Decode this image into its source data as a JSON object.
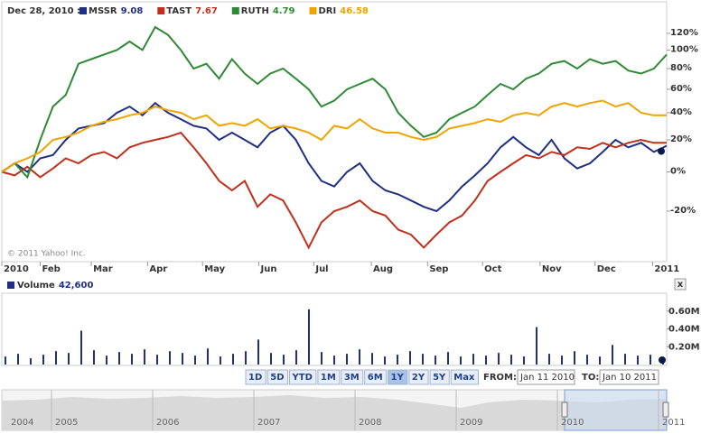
{
  "chart_data": {
    "type": "line",
    "date_label": "Dec 28, 2010 :",
    "credit": "© 2011 Yahoo! Inc.",
    "y_scale": "log",
    "ylim": [
      -40,
      140
    ],
    "yticks": [
      {
        "value": -20,
        "label": "-20%"
      },
      {
        "value": 0,
        "label": "0%"
      },
      {
        "value": 20,
        "label": "20%"
      },
      {
        "value": 40,
        "label": "40%"
      },
      {
        "value": 60,
        "label": "60%"
      },
      {
        "value": 80,
        "label": "80%"
      },
      {
        "value": 100,
        "label": "100%"
      },
      {
        "value": 120,
        "label": "120%"
      }
    ],
    "xlim": [
      0,
      52
    ],
    "xticks": [
      {
        "value": 0,
        "label": "2010"
      },
      {
        "value": 3,
        "label": "Feb"
      },
      {
        "value": 7,
        "label": "Mar"
      },
      {
        "value": 11.4,
        "label": "Apr"
      },
      {
        "value": 15.7,
        "label": "May"
      },
      {
        "value": 20.1,
        "label": "Jun"
      },
      {
        "value": 24.4,
        "label": "Jul"
      },
      {
        "value": 28.9,
        "label": "Aug"
      },
      {
        "value": 33.3,
        "label": "Sep"
      },
      {
        "value": 37.6,
        "label": "Oct"
      },
      {
        "value": 42.1,
        "label": "Nov"
      },
      {
        "value": 46.4,
        "label": "Dec"
      },
      {
        "value": 50.9,
        "label": "2011"
      }
    ],
    "series": [
      {
        "name": "MSSR",
        "quote": 9.08,
        "color": "#1f2f86",
        "values": [
          0,
          5,
          0,
          8,
          10,
          20,
          28,
          30,
          32,
          40,
          45,
          38,
          48,
          40,
          35,
          30,
          28,
          20,
          25,
          20,
          15,
          25,
          30,
          20,
          5,
          -5,
          -8,
          0,
          5,
          -5,
          -10,
          -12,
          -15,
          -18,
          -20,
          -15,
          -8,
          -2,
          5,
          15,
          22,
          15,
          10,
          20,
          8,
          2,
          5,
          12,
          20,
          15,
          18,
          12,
          16
        ]
      },
      {
        "name": "TAST",
        "quote": 7.67,
        "color": "#c0301c",
        "values": [
          0,
          -2,
          3,
          -3,
          2,
          8,
          5,
          10,
          12,
          8,
          15,
          18,
          20,
          22,
          25,
          15,
          5,
          -5,
          -10,
          -5,
          -18,
          -12,
          -15,
          -25,
          -35,
          -25,
          -20,
          -18,
          -15,
          -20,
          -22,
          -28,
          -30,
          -35,
          -30,
          -25,
          -22,
          -15,
          -5,
          0,
          5,
          10,
          8,
          12,
          10,
          15,
          14,
          18,
          15,
          18,
          20,
          18,
          18
        ]
      },
      {
        "name": "RUTH",
        "quote": 4.79,
        "color": "#2f8a36",
        "values": [
          0,
          5,
          -3,
          20,
          45,
          55,
          85,
          90,
          95,
          100,
          110,
          100,
          128,
          118,
          100,
          80,
          85,
          70,
          90,
          75,
          65,
          75,
          80,
          70,
          60,
          45,
          50,
          60,
          65,
          70,
          60,
          40,
          30,
          22,
          25,
          35,
          40,
          45,
          55,
          65,
          60,
          70,
          75,
          85,
          88,
          80,
          90,
          85,
          88,
          78,
          75,
          80,
          95
        ]
      },
      {
        "name": "DRI",
        "quote": 46.58,
        "color": "#f0a400",
        "values": [
          0,
          5,
          8,
          12,
          20,
          22,
          25,
          30,
          33,
          35,
          38,
          40,
          45,
          42,
          40,
          35,
          38,
          30,
          32,
          30,
          35,
          28,
          30,
          28,
          25,
          20,
          30,
          28,
          35,
          28,
          25,
          25,
          22,
          20,
          22,
          28,
          30,
          32,
          35,
          33,
          38,
          40,
          38,
          45,
          48,
          45,
          48,
          50,
          45,
          48,
          40,
          38,
          38
        ]
      }
    ],
    "volume": {
      "type": "bar",
      "name": "Volume",
      "latest": {
        "value": 42600,
        "label": "42,600"
      },
      "color": "#1f2f86",
      "ylim": [
        0,
        800000
      ],
      "yticks": [
        {
          "value": 200000,
          "label": "0.20M"
        },
        {
          "value": 400000,
          "label": "0.40M"
        },
        {
          "value": 600000,
          "label": "0.60M"
        }
      ],
      "values": [
        90000,
        120000,
        70000,
        110000,
        150000,
        130000,
        380000,
        160000,
        100000,
        140000,
        120000,
        170000,
        110000,
        150000,
        130000,
        100000,
        180000,
        90000,
        120000,
        150000,
        280000,
        130000,
        110000,
        160000,
        620000,
        140000,
        100000,
        120000,
        170000,
        130000,
        90000,
        110000,
        150000,
        120000,
        100000,
        140000,
        90000,
        120000,
        100000,
        130000,
        110000,
        90000,
        420000,
        120000,
        100000,
        150000,
        110000,
        90000,
        220000,
        120000,
        100000,
        110000,
        42600
      ]
    }
  },
  "controls": {
    "close": "x",
    "range_buttons": [
      "1D",
      "5D",
      "YTD",
      "1M",
      "3M",
      "6M",
      "1Y",
      "2Y",
      "5Y",
      "Max"
    ],
    "active_range": "1Y",
    "from_label": "FROM:",
    "from": "Jan 11 2010",
    "to_label": "TO:",
    "to": "Jan 10 2011"
  },
  "navigator": {
    "years": [
      "2004",
      "2005",
      "2006",
      "2007",
      "2008",
      "2009",
      "2010",
      "2011"
    ]
  }
}
